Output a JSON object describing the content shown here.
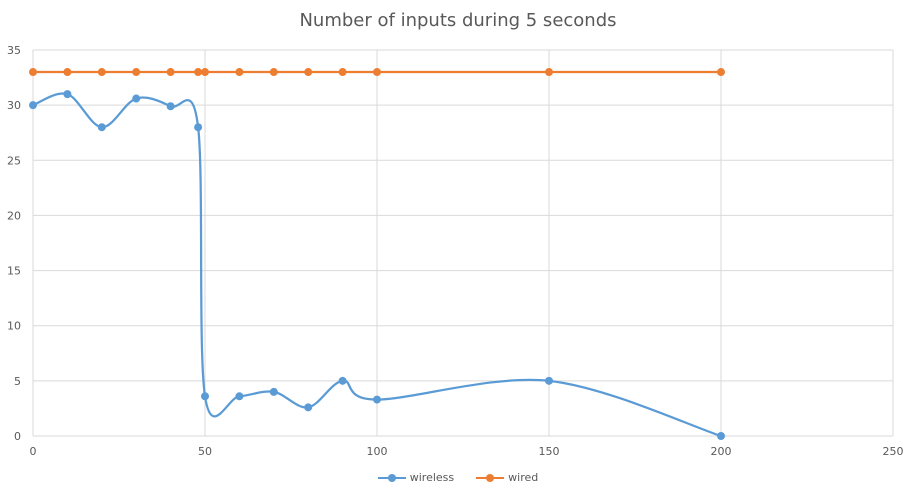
{
  "chart_data": {
    "type": "scatter",
    "title": "Number of inputs during 5 seconds",
    "xlabel": "",
    "ylabel": "",
    "xlim": [
      0,
      250
    ],
    "ylim": [
      0,
      35
    ],
    "x_ticks": [
      0,
      50,
      100,
      150,
      200,
      250
    ],
    "y_ticks": [
      0,
      5,
      10,
      15,
      20,
      25,
      30,
      35
    ],
    "grid": "horizontal and vertical",
    "smooth_lines": true,
    "legend_position": "bottom",
    "series": [
      {
        "name": "wireless",
        "color": "#5B9BD5",
        "x": [
          0,
          10,
          20,
          30,
          40,
          48,
          50,
          60,
          70,
          80,
          90,
          100,
          150,
          200
        ],
        "y": [
          30,
          31,
          28,
          30.6,
          29.9,
          28,
          3.6,
          3.6,
          4,
          2.6,
          5,
          3.3,
          5,
          0
        ]
      },
      {
        "name": "wired",
        "color": "#ED7D31",
        "x": [
          0,
          10,
          20,
          30,
          40,
          48,
          50,
          60,
          70,
          80,
          90,
          100,
          150,
          200
        ],
        "y": [
          33,
          33,
          33,
          33,
          33,
          33,
          33,
          33,
          33,
          33,
          33,
          33,
          33,
          33
        ]
      }
    ]
  }
}
